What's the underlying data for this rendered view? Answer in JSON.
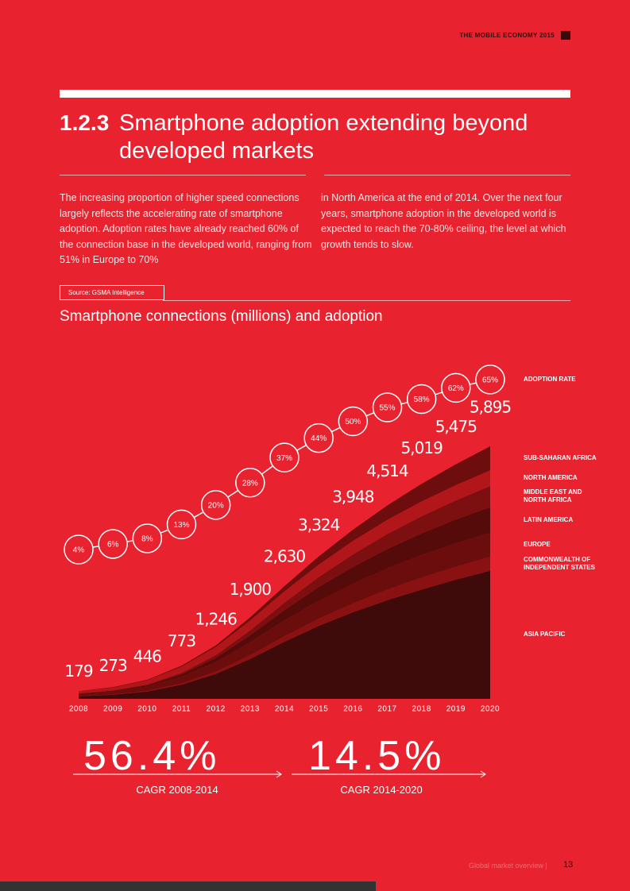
{
  "header": {
    "publication": "THE MOBILE ECONOMY 2015"
  },
  "section": {
    "number": "1.2.3",
    "title": "Smartphone adoption extending beyond developed markets"
  },
  "body": [
    "The increasing proportion of higher speed connections largely reflects the accelerating rate of smartphone adoption. Adoption rates have already reached 60% of the connection base in the developed world, ranging from 51% in Europe to 70%",
    "in North America at the end of 2014. Over the next four years, smartphone adoption in the developed world is expected to reach the 70-80% ceiling, the level at which growth tends to slow."
  ],
  "source": "Source: GSMA Intelligence",
  "chart_data": {
    "type": "area",
    "stacked": true,
    "title": "Smartphone connections (millions) and adoption",
    "categories": [
      "2008",
      "2009",
      "2010",
      "2011",
      "2012",
      "2013",
      "2014",
      "2015",
      "2016",
      "2017",
      "2018",
      "2019",
      "2020"
    ],
    "series": [
      {
        "name": "ASIA PACIFIC",
        "color": "#3f0a0a",
        "values": [
          60,
          95,
          170,
          330,
          580,
          930,
          1330,
          1700,
          2020,
          2300,
          2550,
          2780,
          2990
        ]
      },
      {
        "name": "COMMONWEALTH OF INDEPENDENT STATES",
        "color": "#8a1111",
        "values": [
          5,
          8,
          15,
          30,
          55,
          90,
          130,
          170,
          210,
          250,
          280,
          305,
          325
        ]
      },
      {
        "name": "EUROPE",
        "color": "#6b0d0d",
        "values": [
          50,
          70,
          105,
          160,
          225,
          300,
          370,
          420,
          460,
          495,
          525,
          545,
          560
        ]
      },
      {
        "name": "LATIN AMERICA",
        "color": "#560b0b",
        "values": [
          8,
          14,
          25,
          50,
          95,
          160,
          240,
          320,
          390,
          450,
          505,
          555,
          600
        ]
      },
      {
        "name": "MIDDLE EAST AND NORTH AFRICA",
        "color": "#7c0f0f",
        "values": [
          6,
          10,
          18,
          35,
          65,
          115,
          170,
          230,
          290,
          350,
          400,
          445,
          490
        ]
      },
      {
        "name": "NORTH AMERICA",
        "color": "#b0161a",
        "values": [
          45,
          68,
          100,
          145,
          190,
          235,
          270,
          294,
          318,
          334,
          349,
          360,
          370
        ]
      },
      {
        "name": "SUB-SAHARAN AFRICA",
        "color": "#6e0d0d",
        "values": [
          5,
          8,
          13,
          23,
          36,
          70,
          120,
          190,
          260,
          335,
          410,
          485,
          560
        ]
      }
    ],
    "totals": [
      179,
      273,
      446,
      773,
      1246,
      1900,
      2630,
      3324,
      3948,
      4514,
      5019,
      5475,
      5895
    ],
    "total_labels": [
      "179",
      "273",
      "446",
      "773",
      "1,246",
      "1,900",
      "2,630",
      "3,324",
      "3,948",
      "4,514",
      "5,019",
      "5,475",
      "5,895"
    ],
    "adoption": {
      "name": "ADOPTION RATE",
      "values": [
        4,
        6,
        8,
        13,
        20,
        28,
        37,
        44,
        50,
        55,
        58,
        62,
        65
      ],
      "value_labels": [
        "4%",
        "6%",
        "8%",
        "13%",
        "20%",
        "28%",
        "37%",
        "44%",
        "50%",
        "55%",
        "58%",
        "62%",
        "65%"
      ]
    }
  },
  "cagr": [
    {
      "value": "56.4%",
      "label": "CAGR 2008-2014"
    },
    {
      "value": "14.5%",
      "label": "CAGR 2014-2020"
    }
  ],
  "footer": {
    "section": "Global market overview |",
    "page": "13"
  }
}
